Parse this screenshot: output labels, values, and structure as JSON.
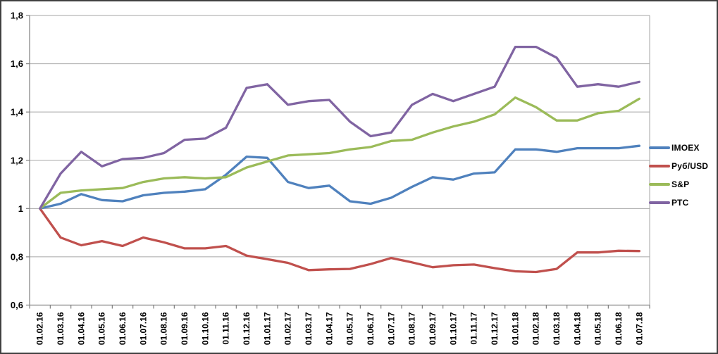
{
  "chart_data": {
    "type": "line",
    "title": "",
    "categories": [
      "01.02.16",
      "01.03.16",
      "01.04.16",
      "01.05.16",
      "01.06.16",
      "01.07.16",
      "01.08.16",
      "01.09.16",
      "01.10.16",
      "01.11.16",
      "01.12.16",
      "01.01.17",
      "01.02.17",
      "01.03.17",
      "01.04.17",
      "01.05.17",
      "01.06.17",
      "01.07.17",
      "01.08.17",
      "01.09.17",
      "01.10.17",
      "01.11.17",
      "01.12.17",
      "01.01.18",
      "01.02.18",
      "01.03.18",
      "01.04.18",
      "01.05.18",
      "01.06.18",
      "01.07.18"
    ],
    "series": [
      {
        "name": "IMOEX",
        "slug": "imoex",
        "color": "#4F81BD",
        "values": [
          1,
          1.02,
          1.06,
          1.035,
          1.03,
          1.055,
          1.065,
          1.07,
          1.08,
          1.14,
          1.215,
          1.21,
          1.11,
          1.085,
          1.095,
          1.03,
          1.02,
          1.045,
          1.09,
          1.13,
          1.12,
          1.145,
          1.15,
          1.245,
          1.245,
          1.235,
          1.25,
          1.25,
          1.25,
          1.26
        ]
      },
      {
        "name": "Руб/USD",
        "slug": "rub-usd",
        "color": "#C0504D",
        "values": [
          1,
          0.88,
          0.848,
          0.865,
          0.845,
          0.88,
          0.86,
          0.835,
          0.835,
          0.845,
          0.805,
          0.79,
          0.775,
          0.745,
          0.748,
          0.75,
          0.77,
          0.795,
          0.777,
          0.757,
          0.765,
          0.768,
          0.753,
          0.74,
          0.737,
          0.75,
          0.818,
          0.818,
          0.825,
          0.824
        ]
      },
      {
        "name": "S&P",
        "slug": "sp",
        "color": "#9BBB59",
        "values": [
          1,
          1.065,
          1.075,
          1.08,
          1.085,
          1.11,
          1.125,
          1.13,
          1.125,
          1.13,
          1.17,
          1.195,
          1.22,
          1.225,
          1.23,
          1.245,
          1.255,
          1.28,
          1.285,
          1.315,
          1.34,
          1.36,
          1.39,
          1.46,
          1.42,
          1.365,
          1.365,
          1.395,
          1.405,
          1.455
        ]
      },
      {
        "name": "РТС",
        "slug": "rts",
        "color": "#8064A2",
        "values": [
          1,
          1.145,
          1.235,
          1.175,
          1.205,
          1.21,
          1.23,
          1.285,
          1.29,
          1.335,
          1.5,
          1.515,
          1.43,
          1.445,
          1.45,
          1.36,
          1.3,
          1.315,
          1.43,
          1.475,
          1.445,
          1.475,
          1.505,
          1.67,
          1.67,
          1.625,
          1.505,
          1.515,
          1.505,
          1.525
        ]
      }
    ],
    "y_axis": {
      "min": 0.6,
      "max": 1.8,
      "tick_step": 0.2,
      "tick_labels": [
        "0,6",
        "0,8",
        "1",
        "1,2",
        "1,4",
        "1,6",
        "1,8"
      ],
      "decimal_separator": ","
    },
    "x_axis": {
      "label_rotation_deg": 90
    },
    "ylim": [
      0.6,
      1.8
    ],
    "grid": "horizontal",
    "legend_position": "right"
  },
  "styles": {
    "background": "#FFFFFF",
    "gridline_color": "#A6A6A6",
    "axis_color": "#808080",
    "label_color": "#000000",
    "frame_border_color": "#404040"
  }
}
